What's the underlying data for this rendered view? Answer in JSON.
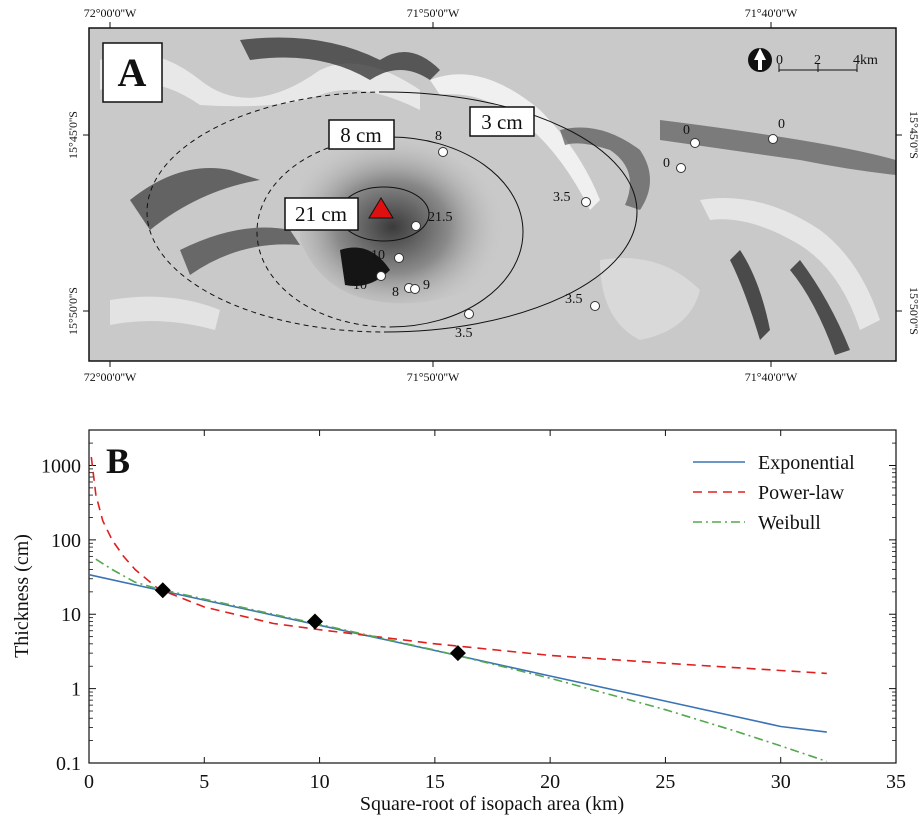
{
  "map_panel": {
    "panel_letter": "A",
    "lon_labels": [
      "72°00'0''W",
      "71°50'0''W",
      "71°40'0''W"
    ],
    "lat_labels": [
      "15°45'0''S",
      "15°50'0''S"
    ],
    "scale_labels": [
      "0",
      "2",
      "4km"
    ],
    "isopachs": [
      {
        "label": "3 cm"
      },
      {
        "label": "8 cm"
      },
      {
        "label": "21 cm"
      }
    ],
    "sample_labels": [
      "8",
      "21.5",
      "10",
      "10",
      "8",
      "9",
      "3.5",
      "3.5",
      "3.5",
      "0",
      "0",
      "0"
    ],
    "colors": {
      "vent": "#e01010",
      "hillshade": "#c9c9c9"
    }
  },
  "chart_panel": {
    "panel_letter": "B"
  },
  "chart_data": {
    "type": "line",
    "title": "",
    "xlabel": "Square-root of isopach area (km)",
    "ylabel": "Thickness (cm)",
    "xlim": [
      0,
      35
    ],
    "ylim": [
      0.1,
      3000
    ],
    "y_scale": "log",
    "x_ticks": [
      "0",
      "5",
      "10",
      "15",
      "20",
      "25",
      "30",
      "35"
    ],
    "y_ticks": [
      "0.1",
      "1",
      "10",
      "100",
      "1000"
    ],
    "legend_position": "top-right",
    "grid": false,
    "observations": {
      "x": [
        3.2,
        9.8,
        16.0
      ],
      "y": [
        21,
        8,
        3
      ],
      "marker": "diamond",
      "color": "#000000"
    },
    "series": [
      {
        "name": "Exponential",
        "style": "solid",
        "color": "#3a73b5",
        "x": [
          0,
          5,
          10,
          15,
          20,
          25,
          30,
          32
        ],
        "y": [
          34,
          15.5,
          7.1,
          3.25,
          1.48,
          0.68,
          0.31,
          0.26
        ]
      },
      {
        "name": "Power-law",
        "style": "dashed",
        "color": "#e02020",
        "x": [
          0.1,
          0.3,
          0.6,
          1,
          1.5,
          2,
          3,
          5,
          8,
          10,
          15,
          20,
          25,
          30,
          32
        ],
        "y": [
          1300,
          400,
          180,
          100,
          60,
          40,
          22,
          12.5,
          7.5,
          6.2,
          4.0,
          2.8,
          2.2,
          1.75,
          1.6
        ]
      },
      {
        "name": "Weibull",
        "style": "dash-dot",
        "color": "#55a84e",
        "x": [
          0.3,
          1,
          2,
          3,
          5,
          10,
          15,
          20,
          25,
          28,
          30,
          32
        ],
        "y": [
          55,
          40,
          27,
          22,
          16,
          7.3,
          3.3,
          1.38,
          0.52,
          0.27,
          0.17,
          0.105
        ]
      }
    ]
  }
}
